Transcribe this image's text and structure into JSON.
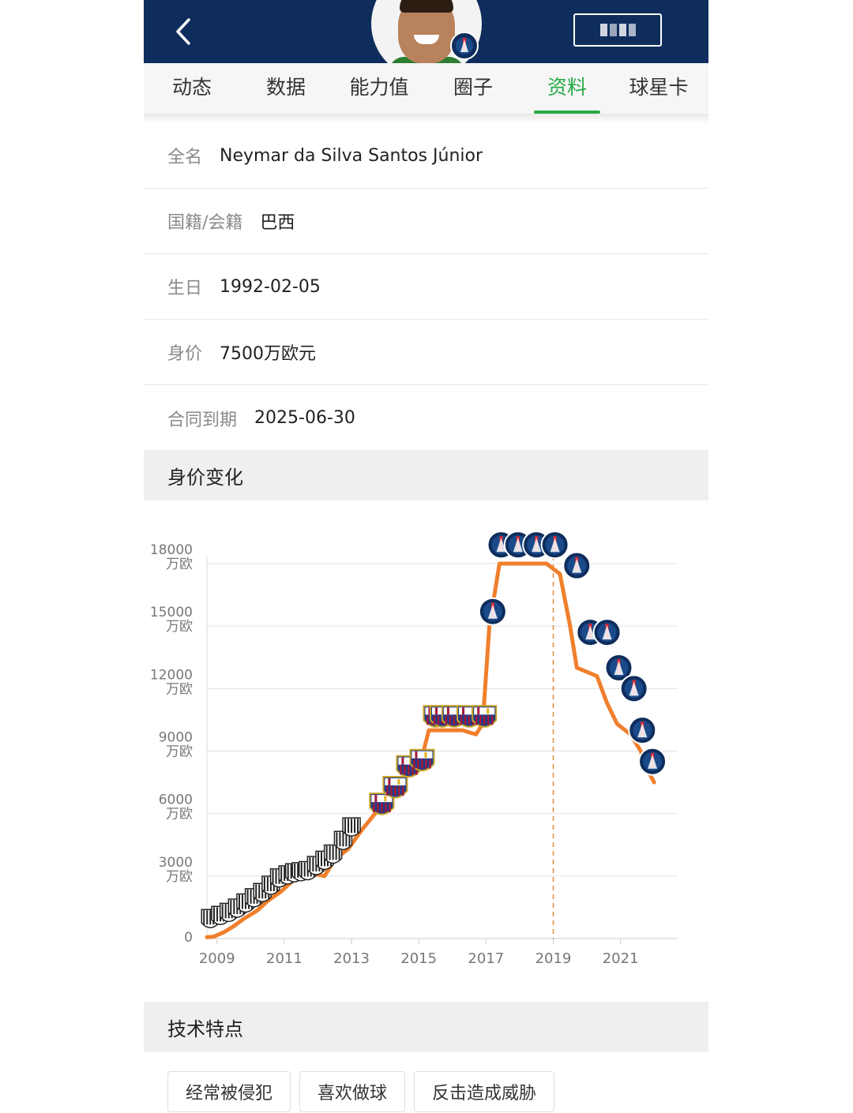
{
  "header": {
    "back_icon": "chevron-left-icon",
    "club_badge_icon": "psg-badge-icon"
  },
  "tabs": [
    {
      "label": "动态"
    },
    {
      "label": "数据"
    },
    {
      "label": "能力值"
    },
    {
      "label": "圈子"
    },
    {
      "label": "资料",
      "active": true
    },
    {
      "label": "球星卡"
    }
  ],
  "info": {
    "full_name": {
      "label": "全名",
      "value": "Neymar da Silva Santos Júnior"
    },
    "nationality": {
      "label": "国籍/会籍",
      "value": "巴西"
    },
    "birthday": {
      "label": "生日",
      "value": "1992-02-05"
    },
    "market_value": {
      "label": "身价",
      "value": "7500万欧元"
    },
    "contract": {
      "label": "合同到期",
      "value": "2025-06-30"
    }
  },
  "value_section": {
    "title": "身价变化"
  },
  "skills_section": {
    "title": "技术特点"
  },
  "tags": [
    "经常被侵犯",
    "喜欢做球",
    "反击造成威胁"
  ],
  "colors": {
    "header_bg": "#0e2d5c",
    "accent_green": "#27a845",
    "line_orange": "#f07f2c",
    "santos_stripe": "#222222",
    "barca_blue": "#1a3e8c",
    "barca_red": "#a3183a",
    "psg_navy": "#0e2d5c"
  },
  "chart_data": {
    "type": "line",
    "title": "身价变化",
    "y_unit": "万欧",
    "ylim": [
      0,
      18000
    ],
    "yticks": [
      0,
      3000,
      6000,
      9000,
      12000,
      15000,
      18000
    ],
    "yticklabels": [
      "0",
      "3000\n万欧",
      "6000\n万欧",
      "9000\n万欧",
      "12000\n万欧",
      "15000\n万欧",
      "18000\n万欧"
    ],
    "xlim": [
      2008.7,
      2022.7
    ],
    "xticks": [
      "2009",
      "2011",
      "2013",
      "2015",
      "2017",
      "2019",
      "2021"
    ],
    "grid": true,
    "reference_line_x": 2019,
    "series": [
      {
        "points": [
          [
            2008.7,
            70
          ],
          [
            2008.9,
            90
          ],
          [
            2009.2,
            300
          ],
          [
            2009.5,
            600
          ],
          [
            2009.8,
            950
          ],
          [
            2010.2,
            1350
          ],
          [
            2010.5,
            1800
          ],
          [
            2010.9,
            2250
          ],
          [
            2011.2,
            2700
          ],
          [
            2011.5,
            3000
          ],
          [
            2011.9,
            3100
          ],
          [
            2012.2,
            3000
          ],
          [
            2012.5,
            3800
          ],
          [
            2012.9,
            4300
          ],
          [
            2013.3,
            5200
          ],
          [
            2013.7,
            6000
          ],
          [
            2014.1,
            6700
          ],
          [
            2014.4,
            7300
          ],
          [
            2014.7,
            8000
          ],
          [
            2015.0,
            8100
          ],
          [
            2015.3,
            10000
          ],
          [
            2015.6,
            10000
          ],
          [
            2015.9,
            10000
          ],
          [
            2016.3,
            10000
          ],
          [
            2016.7,
            9800
          ],
          [
            2016.9,
            10300
          ],
          [
            2017.1,
            15000
          ],
          [
            2017.4,
            18000
          ],
          [
            2017.8,
            18000
          ],
          [
            2018.3,
            18000
          ],
          [
            2018.8,
            18000
          ],
          [
            2019.2,
            17500
          ],
          [
            2019.5,
            15000
          ],
          [
            2019.7,
            13000
          ],
          [
            2020.0,
            12800
          ],
          [
            2020.3,
            12600
          ],
          [
            2020.6,
            11300
          ],
          [
            2020.9,
            10300
          ],
          [
            2021.3,
            9800
          ],
          [
            2021.6,
            9000
          ],
          [
            2021.9,
            7800
          ],
          [
            2022.0,
            7500
          ]
        ]
      }
    ],
    "club_markers": [
      {
        "club": "Santos",
        "points": [
          [
            2008.8,
            900
          ],
          [
            2009.1,
            1050
          ],
          [
            2009.35,
            1200
          ],
          [
            2009.6,
            1400
          ],
          [
            2009.85,
            1650
          ],
          [
            2010.1,
            1900
          ],
          [
            2010.35,
            2150
          ],
          [
            2010.6,
            2500
          ],
          [
            2010.85,
            2850
          ],
          [
            2011.1,
            3000
          ],
          [
            2011.3,
            3100
          ],
          [
            2011.5,
            3150
          ],
          [
            2011.7,
            3200
          ],
          [
            2011.95,
            3450
          ],
          [
            2012.2,
            3700
          ],
          [
            2012.45,
            4000
          ],
          [
            2012.75,
            4650
          ],
          [
            2013.0,
            5300
          ]
        ]
      },
      {
        "club": "Barcelona",
        "points": [
          [
            2013.9,
            6400
          ],
          [
            2014.3,
            7200
          ],
          [
            2014.7,
            8200
          ],
          [
            2015.1,
            8500
          ],
          [
            2015.5,
            10600
          ],
          [
            2015.7,
            10600
          ],
          [
            2016.05,
            10600
          ],
          [
            2016.5,
            10600
          ],
          [
            2016.95,
            10600
          ]
        ]
      },
      {
        "club": "PSG",
        "points": [
          [
            2017.2,
            15700
          ],
          [
            2017.45,
            18900
          ],
          [
            2017.95,
            18900
          ],
          [
            2018.5,
            18900
          ],
          [
            2019.05,
            18900
          ],
          [
            2019.7,
            17900
          ],
          [
            2020.1,
            14700
          ],
          [
            2020.6,
            14700
          ],
          [
            2020.95,
            13000
          ],
          [
            2021.4,
            12000
          ],
          [
            2021.65,
            10000
          ],
          [
            2021.95,
            8500
          ]
        ]
      }
    ]
  }
}
